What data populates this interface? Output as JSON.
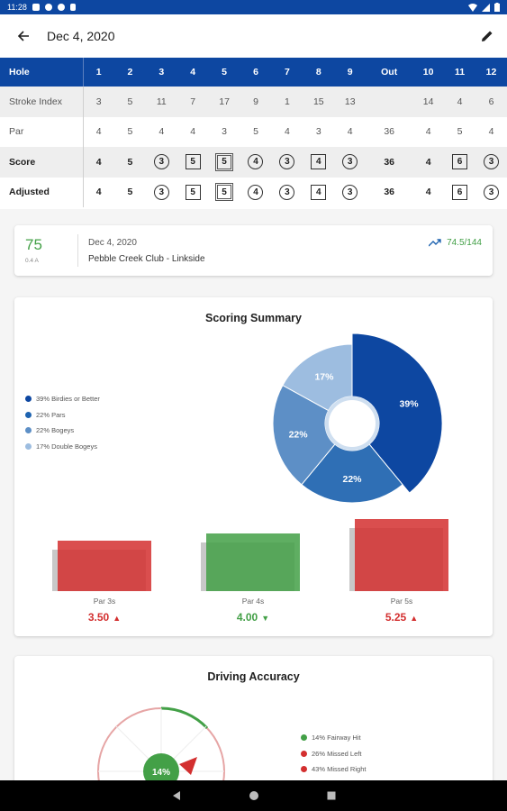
{
  "status": {
    "time": "11:28"
  },
  "appbar": {
    "title": "Dec 4, 2020"
  },
  "scorecard": {
    "headers": [
      "Hole",
      "1",
      "2",
      "3",
      "4",
      "5",
      "6",
      "7",
      "8",
      "9",
      "Out",
      "10",
      "11",
      "12"
    ],
    "rows": [
      {
        "label": "Stroke Index",
        "cells": [
          "3",
          "5",
          "11",
          "7",
          "17",
          "9",
          "1",
          "15",
          "13",
          "",
          "14",
          "4",
          "6"
        ],
        "bold": false,
        "marks": [
          "",
          "",
          "",
          "",
          "",
          "",
          "",
          "",
          "",
          "",
          "",
          "",
          ""
        ]
      },
      {
        "label": "Par",
        "cells": [
          "4",
          "5",
          "4",
          "4",
          "3",
          "5",
          "4",
          "3",
          "4",
          "36",
          "4",
          "5",
          "4"
        ],
        "bold": false,
        "marks": [
          "",
          "",
          "",
          "",
          "",
          "",
          "",
          "",
          "",
          "",
          "",
          "",
          ""
        ]
      },
      {
        "label": "Score",
        "cells": [
          "4",
          "5",
          "3",
          "5",
          "5",
          "4",
          "3",
          "4",
          "3",
          "36",
          "4",
          "6",
          "3"
        ],
        "bold": true,
        "marks": [
          "",
          "",
          "circle",
          "square",
          "double",
          "circle",
          "circle",
          "square",
          "circle",
          "",
          "",
          "square",
          "circle"
        ]
      },
      {
        "label": "Adjusted",
        "cells": [
          "4",
          "5",
          "3",
          "5",
          "5",
          "4",
          "3",
          "4",
          "3",
          "36",
          "4",
          "6",
          "3"
        ],
        "bold": true,
        "marks": [
          "",
          "",
          "circle",
          "square",
          "double",
          "circle",
          "circle",
          "square",
          "circle",
          "",
          "",
          "square",
          "circle"
        ]
      }
    ]
  },
  "round": {
    "score": "75",
    "handicap_text": "0.4 A",
    "date": "Dec 4, 2020",
    "course": "Pebble Creek Club - Linkside",
    "rating": "74.5/144",
    "trend_icon": "trending-up-icon"
  },
  "summary": {
    "title": "Scoring Summary",
    "legend": [
      {
        "label": "39% Birdies or Better",
        "color": "#0d47a1"
      },
      {
        "label": "22% Pars",
        "color": "#1e63b0"
      },
      {
        "label": "22% Bogeys",
        "color": "#5d8fc6"
      },
      {
        "label": "17% Double Bogeys",
        "color": "#9dbde0"
      }
    ],
    "pie": [
      {
        "label": "39%",
        "value": 39,
        "color": "#0d47a1",
        "explode": 1
      },
      {
        "label": "22%",
        "value": 22,
        "color": "#2f6fb5",
        "explode": 0
      },
      {
        "label": "22%",
        "value": 22,
        "color": "#5d8fc6",
        "explode": 0
      },
      {
        "label": "17%",
        "value": 17,
        "color": "#9dbde0",
        "explode": 0
      }
    ],
    "par_averages": [
      {
        "label": "Par 3s",
        "value": "3.50",
        "fill": 0.45,
        "color": "#d32f2f",
        "arrow": "▲"
      },
      {
        "label": "Par 4s",
        "value": "4.00",
        "fill": 0.55,
        "color": "#43a047",
        "arrow": "▼"
      },
      {
        "label": "Par 5s",
        "value": "5.25",
        "fill": 0.75,
        "color": "#d32f2f",
        "arrow": "▲"
      }
    ]
  },
  "driving": {
    "title": "Driving Accuracy",
    "center_label": "14%",
    "legend": [
      {
        "label": "14% Fairway Hit",
        "color": "#43a047"
      },
      {
        "label": "26% Missed Left",
        "color": "#d32f2f"
      },
      {
        "label": "43% Missed Right",
        "color": "#d32f2f"
      }
    ]
  }
}
